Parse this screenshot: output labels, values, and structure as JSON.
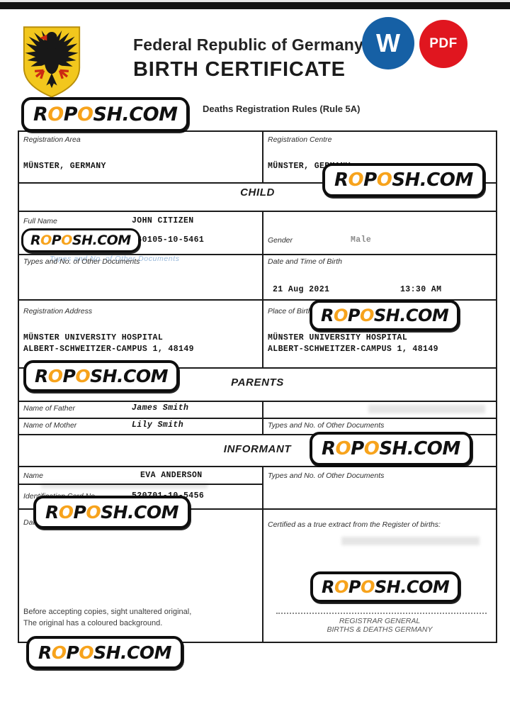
{
  "header": {
    "country_title": "Federal Republic of Germany",
    "doc_title": "BIRTH CERTIFICATE",
    "subtitle": "Deaths Registration Rules (Rule 5A)",
    "emblem": "german-eagle-coat-of-arms",
    "word_icon_label": "W",
    "pdf_icon_label": "PDF",
    "word_icon_color": "#1660a5",
    "pdf_icon_color": "#e0161f"
  },
  "watermark": {
    "text": "ROPOSH.COM",
    "orange": "#F7A31C",
    "segments": [
      {
        "text": "R",
        "orange": false
      },
      {
        "text": "O",
        "orange": true
      },
      {
        "text": "P",
        "orange": false
      },
      {
        "text": "O",
        "orange": true
      },
      {
        "text": "SH.COM",
        "orange": false
      }
    ]
  },
  "form": {
    "registration_area": {
      "label": "Registration Area",
      "value": "MÜNSTER, GERMANY"
    },
    "registration_centre": {
      "label": "Registration Centre",
      "value": "MÜNSTER, GERMANY"
    },
    "section_child": "CHILD",
    "section_parents": "PARENTS",
    "section_informant": "INFORMANT",
    "child": {
      "full_name": {
        "label": "Full Name",
        "value": "JOHN CITIZEN"
      },
      "id_card": {
        "label": "Identification Card No.",
        "value": "460105-10-5461"
      },
      "gender": {
        "label": "Gender",
        "value": "Male"
      },
      "other_docs_label": "Types and No. of Other Documents",
      "other_docs_ghost": "Types and No. of Other Documents",
      "birth": {
        "label": "Date and Time of Birth",
        "date": "21 Aug 2021",
        "time": "13:30 AM"
      },
      "registration_address": {
        "label": "Registration Address",
        "line1": "MÜNSTER UNIVERSITY HOSPITAL",
        "line2": "ALBERT-SCHWEITZER-CAMPUS 1, 48149"
      },
      "place_of_birth": {
        "label": "Place of Birth",
        "line1": "MÜNSTER UNIVERSITY HOSPITAL",
        "line2": "ALBERT-SCHWEITZER-CAMPUS 1, 48149"
      }
    },
    "parents": {
      "father": {
        "label": "Name of Father",
        "value": "James Smith"
      },
      "mother": {
        "label": "Name of Mother",
        "value": "Lily Smith"
      },
      "other_docs_label": "Types and No. of Other Documents"
    },
    "informant": {
      "name": {
        "label": "Name",
        "value": "EVA ANDERSON"
      },
      "id_card": {
        "label": "Identification Card No.",
        "value": "520701-10-5456"
      },
      "other_docs_label": "Types and No.  of Other Documents",
      "date_of_registration_label": "Date of Registration"
    },
    "footer": {
      "certified_label": "Certified as a true extract from the Register of births:",
      "note_line1": "Before accepting copies, sight unaltered original,",
      "note_line2": "The original has a coloured background.",
      "registrar_line1": "REGISTRAR GENERAL",
      "registrar_line2": "BIRTHS & DEATHS GERMANY"
    }
  }
}
